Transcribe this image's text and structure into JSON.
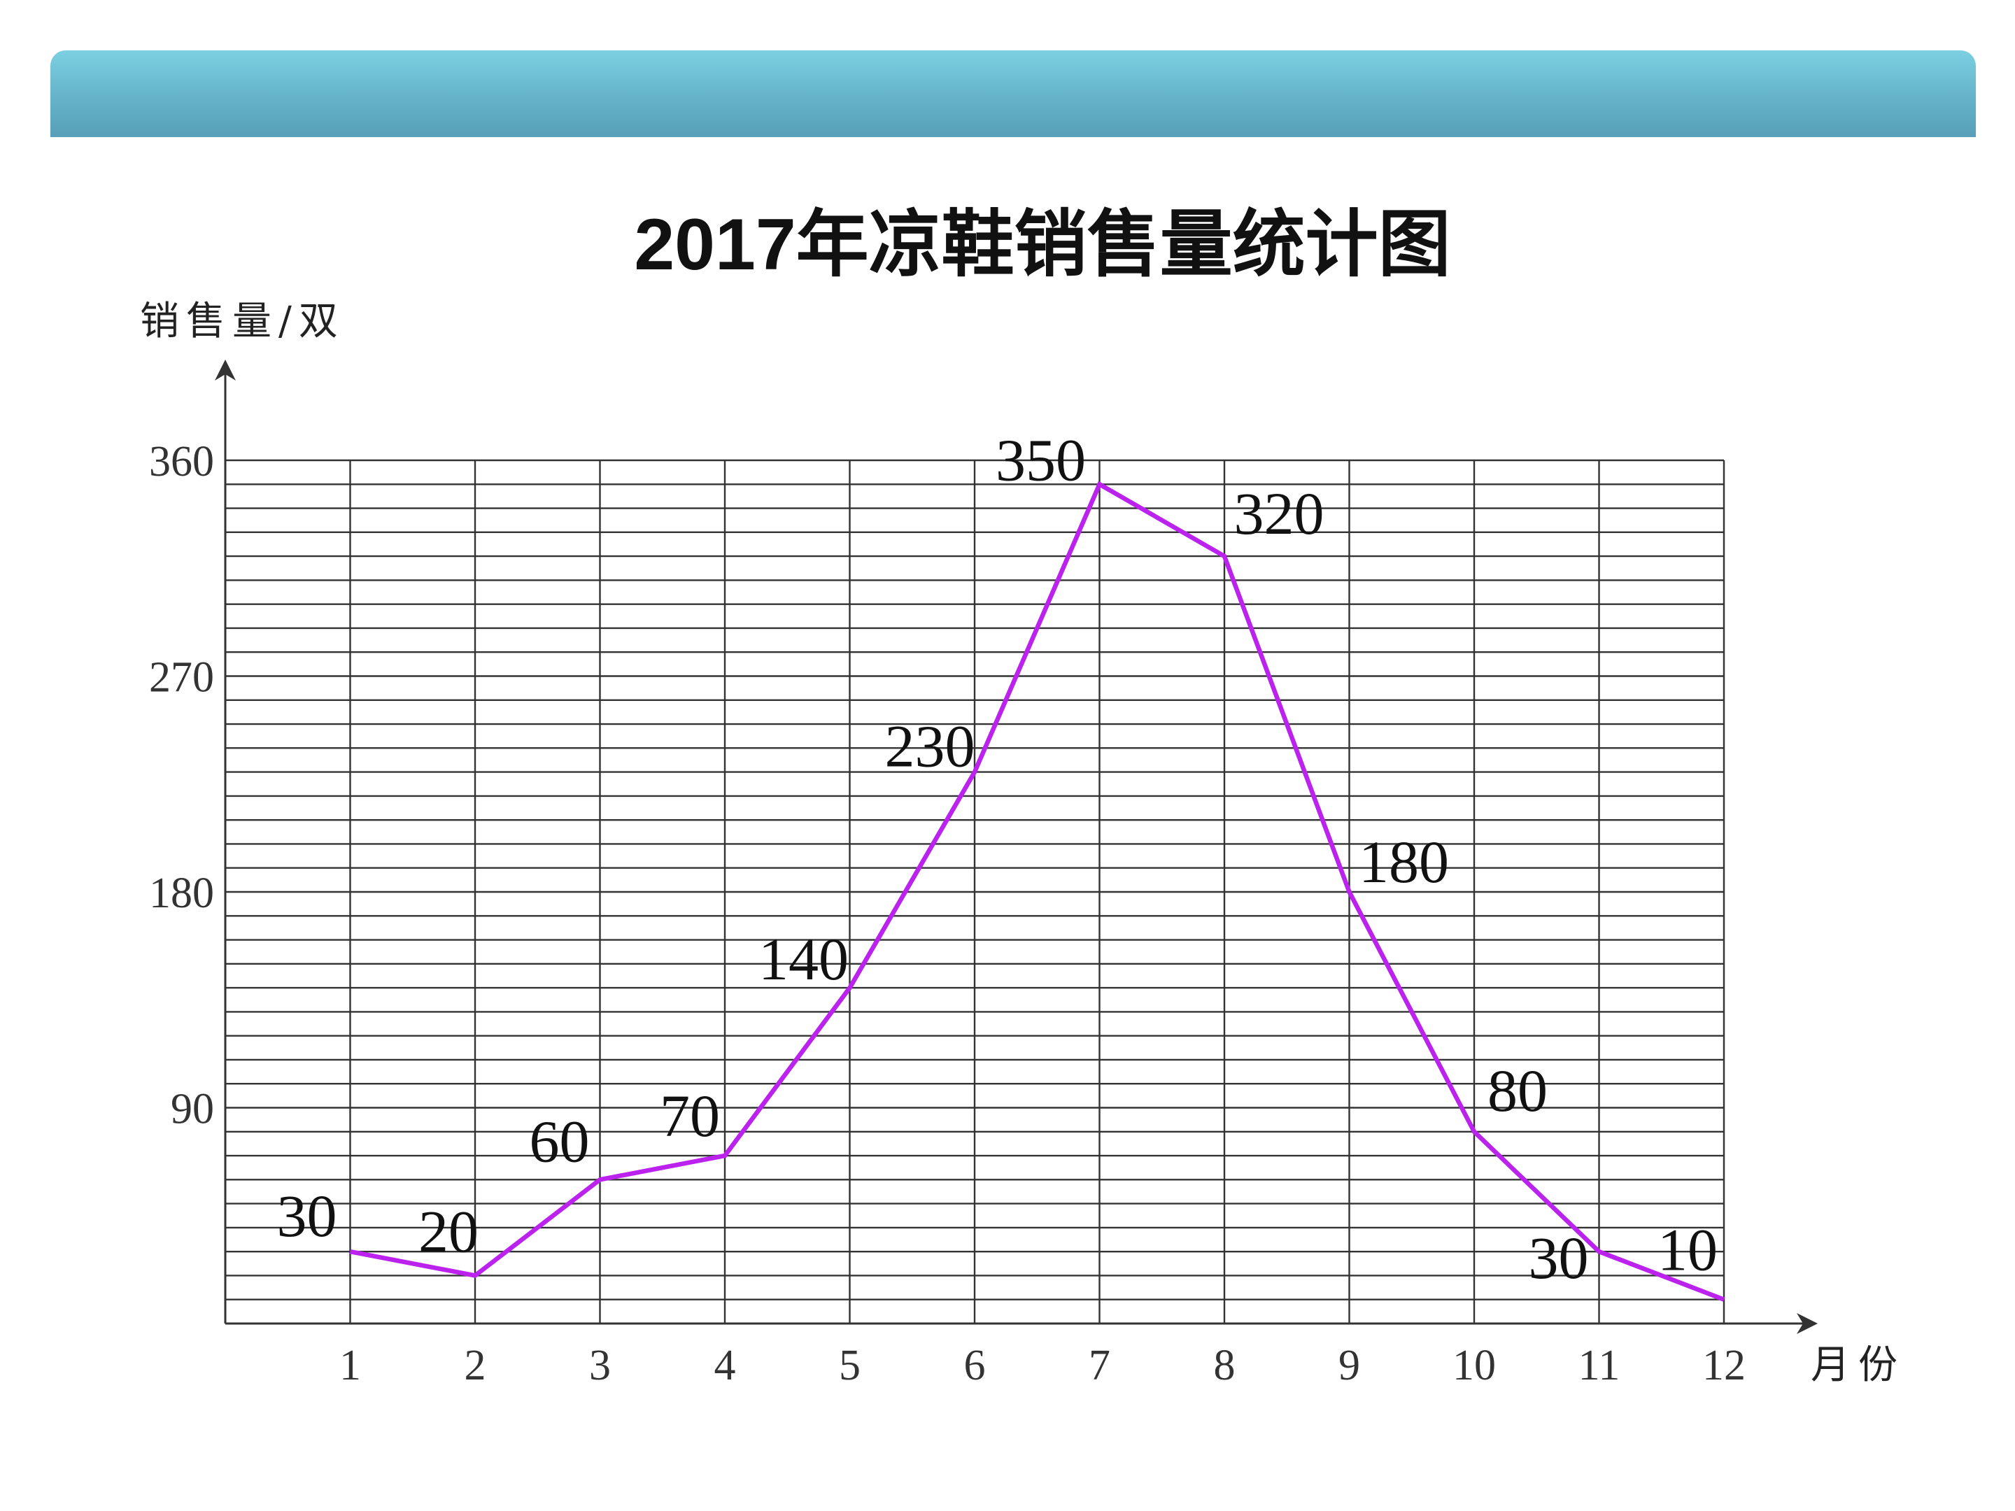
{
  "chart_data": {
    "type": "line",
    "title": "2017年凉鞋销售量统计图",
    "ylabel": "销售量/双",
    "xlabel": "月份",
    "categories": [
      "1",
      "2",
      "3",
      "4",
      "5",
      "6",
      "7",
      "8",
      "9",
      "10",
      "11",
      "12"
    ],
    "series": [
      {
        "values": [
          30,
          20,
          60,
          70,
          140,
          230,
          350,
          320,
          180,
          80,
          30,
          10
        ],
        "data_labels": [
          "30",
          "20",
          "60",
          "70",
          "140",
          "230",
          "350",
          "320",
          "180",
          "80",
          "30",
          "10"
        ],
        "color": "#bb22ee"
      }
    ],
    "yticks": [
      "90",
      "180",
      "270",
      "360"
    ],
    "ylim": [
      0,
      360
    ],
    "y_minor_step": 10,
    "grid": true
  },
  "colors": {
    "header_bar": "#64b3c9",
    "line": "#bb22ee"
  }
}
